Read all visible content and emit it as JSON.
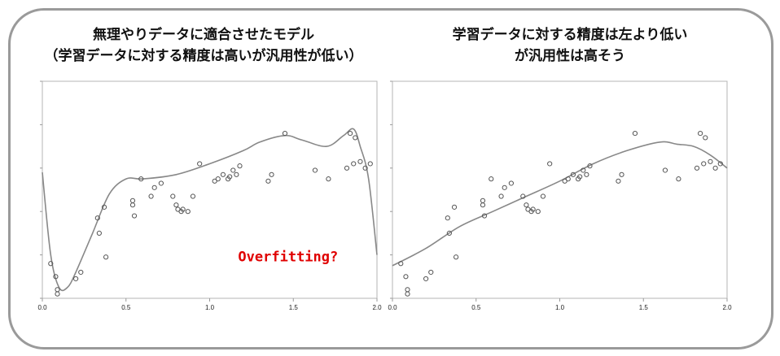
{
  "titles": {
    "left": [
      "無理やりデータに適合させたモデル",
      "（学習データに対する精度は高いが汎用性が低い）"
    ],
    "right": [
      "学習データに対する精度は左より低い",
      "が汎用性は高そう"
    ]
  },
  "annotation": "Overfitting?",
  "colors": {
    "frame": "#9a9a9a",
    "curve": "#888888",
    "points": "#555555",
    "annotation": "#e00000"
  },
  "chart_data": [
    {
      "type": "scatter",
      "title": "無理やりデータに適合させたモデル（学習データに対する精度は高いが汎用性が低い）",
      "xlim": [
        0.0,
        2.0
      ],
      "ylim": [
        0.0,
        1.0
      ],
      "xticks": [
        "0.0",
        "0.5",
        "1.0",
        "1.5",
        "2.0"
      ],
      "grid": false,
      "annotation": "Overfitting?",
      "points": {
        "x": [
          0.05,
          0.08,
          0.09,
          0.09,
          0.2,
          0.23,
          0.33,
          0.34,
          0.37,
          0.38,
          0.54,
          0.54,
          0.55,
          0.59,
          0.65,
          0.67,
          0.71,
          0.78,
          0.8,
          0.81,
          0.83,
          0.84,
          0.87,
          0.9,
          0.94,
          1.03,
          1.05,
          1.08,
          1.11,
          1.12,
          1.14,
          1.16,
          1.18,
          1.35,
          1.37,
          1.45,
          1.63,
          1.71,
          1.82,
          1.84,
          1.86,
          1.87,
          1.9,
          1.93,
          1.96
        ],
        "y": [
          0.16,
          0.1,
          0.04,
          0.02,
          0.09,
          0.12,
          0.37,
          0.3,
          0.42,
          0.19,
          0.45,
          0.43,
          0.38,
          0.55,
          0.47,
          0.51,
          0.53,
          0.47,
          0.43,
          0.41,
          0.4,
          0.41,
          0.4,
          0.47,
          0.62,
          0.54,
          0.55,
          0.57,
          0.55,
          0.56,
          0.59,
          0.57,
          0.61,
          0.54,
          0.57,
          0.76,
          0.59,
          0.55,
          0.6,
          0.76,
          0.62,
          0.74,
          0.63,
          0.6,
          0.62
        ]
      },
      "curve": {
        "name": "",
        "x": [
          0.0,
          0.05,
          0.1,
          0.15,
          0.2,
          0.3,
          0.4,
          0.5,
          0.6,
          0.8,
          1.0,
          1.2,
          1.3,
          1.45,
          1.55,
          1.7,
          1.8,
          1.86,
          1.9,
          1.95,
          2.0
        ],
        "y": [
          0.58,
          0.2,
          0.05,
          0.05,
          0.12,
          0.3,
          0.48,
          0.55,
          0.55,
          0.57,
          0.62,
          0.68,
          0.72,
          0.75,
          0.73,
          0.7,
          0.75,
          0.78,
          0.7,
          0.55,
          0.2
        ]
      }
    },
    {
      "type": "scatter",
      "title": "学習データに対する精度は左より低いが汎用性は高そう",
      "xlim": [
        0.0,
        2.0
      ],
      "ylim": [
        0.0,
        1.0
      ],
      "xticks": [
        "0.0",
        "0.5",
        "1.0",
        "1.5",
        "2.0"
      ],
      "grid": false,
      "points": {
        "x": [
          0.05,
          0.08,
          0.09,
          0.09,
          0.2,
          0.23,
          0.33,
          0.34,
          0.37,
          0.38,
          0.54,
          0.54,
          0.55,
          0.59,
          0.65,
          0.67,
          0.71,
          0.78,
          0.8,
          0.81,
          0.83,
          0.84,
          0.87,
          0.9,
          0.94,
          1.03,
          1.05,
          1.08,
          1.11,
          1.12,
          1.14,
          1.16,
          1.18,
          1.35,
          1.37,
          1.45,
          1.63,
          1.71,
          1.82,
          1.84,
          1.86,
          1.87,
          1.9,
          1.93,
          1.96
        ],
        "y": [
          0.16,
          0.1,
          0.04,
          0.02,
          0.09,
          0.12,
          0.37,
          0.3,
          0.42,
          0.19,
          0.45,
          0.43,
          0.38,
          0.55,
          0.47,
          0.51,
          0.53,
          0.47,
          0.43,
          0.41,
          0.4,
          0.41,
          0.4,
          0.47,
          0.62,
          0.54,
          0.55,
          0.57,
          0.55,
          0.56,
          0.59,
          0.57,
          0.61,
          0.54,
          0.57,
          0.76,
          0.59,
          0.55,
          0.6,
          0.76,
          0.62,
          0.74,
          0.63,
          0.6,
          0.62
        ]
      },
      "curve": {
        "name": "",
        "x": [
          0.0,
          0.2,
          0.4,
          0.6,
          0.8,
          1.0,
          1.2,
          1.4,
          1.6,
          1.7,
          1.8,
          1.9,
          2.0
        ],
        "y": [
          0.15,
          0.23,
          0.33,
          0.4,
          0.47,
          0.54,
          0.62,
          0.68,
          0.72,
          0.71,
          0.7,
          0.66,
          0.6
        ]
      }
    }
  ]
}
